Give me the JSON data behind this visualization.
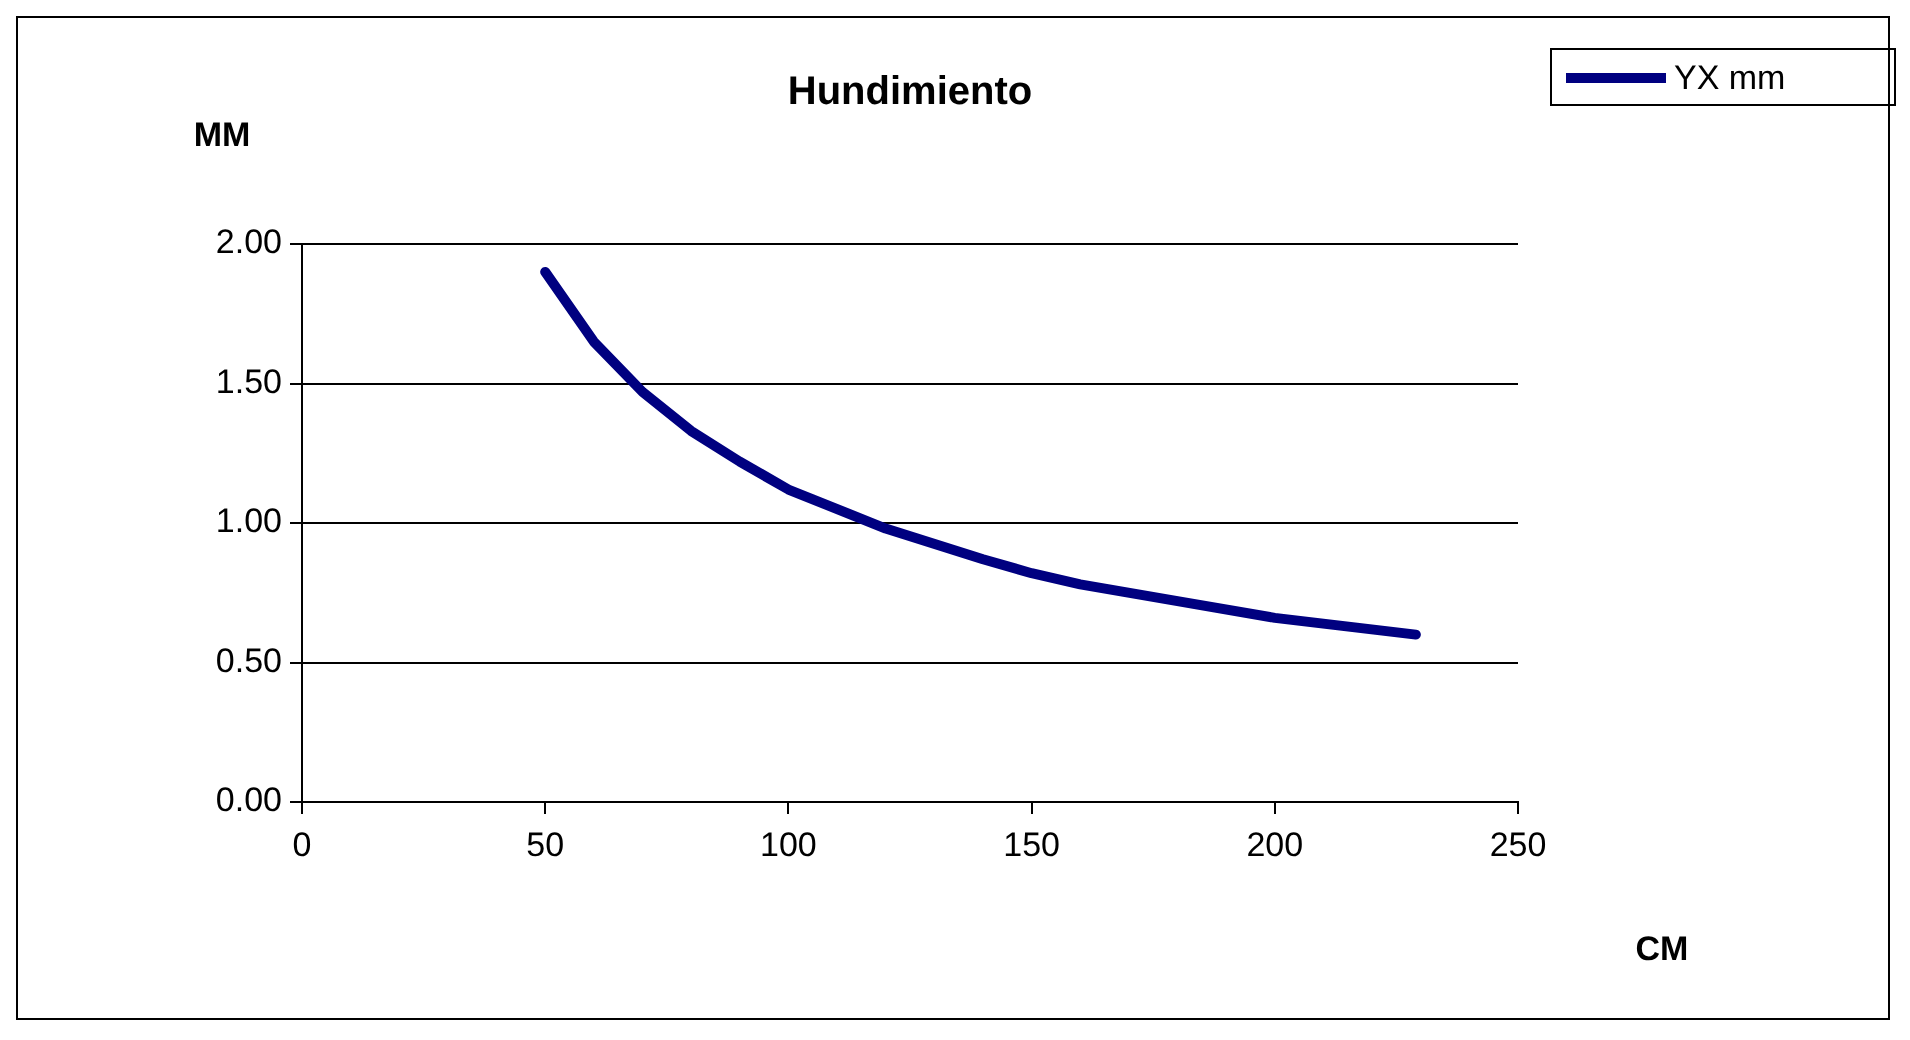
{
  "chart_data": {
    "type": "line",
    "title": "Hundimiento",
    "xlabel": "CM",
    "ylabel": "MM",
    "x": [
      50,
      60,
      70,
      80,
      90,
      100,
      120,
      140,
      150,
      160,
      180,
      200,
      229
    ],
    "series": [
      {
        "name": "YX mm",
        "color": "#000080",
        "values": [
          1.9,
          1.65,
          1.47,
          1.33,
          1.22,
          1.12,
          0.98,
          0.87,
          0.82,
          0.78,
          0.72,
          0.66,
          0.6
        ]
      }
    ],
    "xlim": [
      0,
      250
    ],
    "xticks": [
      0,
      50,
      100,
      150,
      200,
      250
    ],
    "ylim": [
      0,
      2
    ],
    "yticks": [
      {
        "value": 0,
        "label": "0.00"
      },
      {
        "value": 0.5,
        "label": "0.50"
      },
      {
        "value": 1,
        "label": "1.00"
      },
      {
        "value": 1.5,
        "label": "1.50"
      },
      {
        "value": 2,
        "label": "2.00"
      }
    ],
    "grid": "y",
    "legend": "top right",
    "marker": "none",
    "line_style": "solid"
  }
}
